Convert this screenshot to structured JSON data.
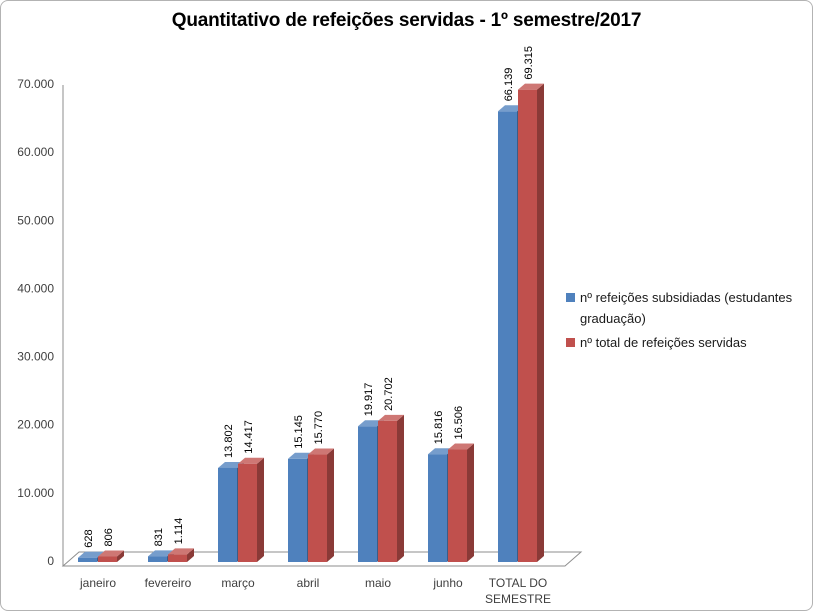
{
  "title": "Quantitativo de refeições servidas - 1º semestre/2017",
  "chart_data": {
    "type": "bar",
    "style": "3d-clustered-column",
    "title": "Quantitativo de refeições servidas - 1º semestre/2017",
    "categories": [
      "janeiro",
      "fevereiro",
      "março",
      "abril",
      "maio",
      "junho",
      "TOTAL DO SEMESTRE"
    ],
    "series": [
      {
        "name": "nº refeições subsidiadas (estudantes graduação)",
        "color": "#4F81BD",
        "values": [
          628,
          831,
          13802,
          15145,
          19917,
          15816,
          66139
        ],
        "labels": [
          "628",
          "831",
          "13.802",
          "15.145",
          "19.917",
          "15.816",
          "66.139"
        ]
      },
      {
        "name": "nº total de refeições servidas",
        "color": "#C0504D",
        "values": [
          806,
          1114,
          14417,
          15770,
          20702,
          16506,
          69315
        ],
        "labels": [
          "806",
          "1.114",
          "14.417",
          "15.770",
          "20.702",
          "16.506",
          "69.315"
        ]
      }
    ],
    "xlabel": "",
    "ylabel": "",
    "ylim": [
      0,
      70000
    ],
    "yticks": [
      {
        "value": 0,
        "label": "0"
      },
      {
        "value": 10000,
        "label": "10.000"
      },
      {
        "value": 20000,
        "label": "20.000"
      },
      {
        "value": 30000,
        "label": "30.000"
      },
      {
        "value": 40000,
        "label": "40.000"
      },
      {
        "value": 50000,
        "label": "50.000"
      },
      {
        "value": 60000,
        "label": "60.000"
      },
      {
        "value": 70000,
        "label": "70.000"
      }
    ],
    "grid": false,
    "legend_position": "right",
    "data_labels": "rotated-90",
    "axis_color": "#8e8e8e"
  }
}
